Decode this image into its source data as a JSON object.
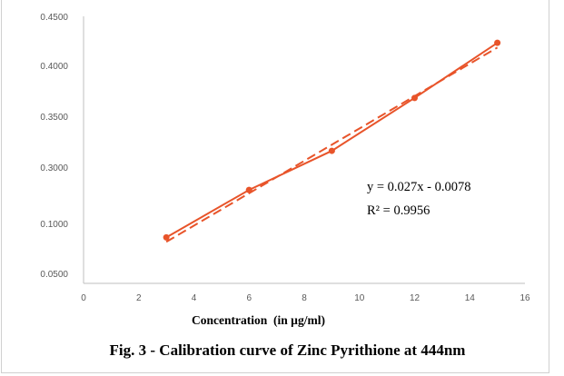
{
  "chart_data": {
    "type": "line",
    "title": "Fig. 3 - Calibration curve of Zinc Pyrithione at 444nm",
    "xlabel": "Concentration  (in µg/ml)",
    "ylabel": "",
    "xlim": [
      0,
      16
    ],
    "x_ticks": [
      "0",
      "2",
      "4",
      "6",
      "8",
      "10",
      "12",
      "14",
      "16"
    ],
    "y_ticks": [
      "0.0500",
      "0.1000",
      "0.3000",
      "0.3500",
      "0.4000",
      "0.4500"
    ],
    "x": [
      3,
      6,
      9,
      12,
      15
    ],
    "values": [
      0.086,
      0.219,
      0.316,
      0.368,
      0.423
    ],
    "series_color": "#E8542A",
    "trendline": {
      "style": "dashed",
      "equation": "y = 0.027x - 0.0078",
      "r2": "R² = 0.9956"
    },
    "grid": false,
    "legend": "none"
  }
}
